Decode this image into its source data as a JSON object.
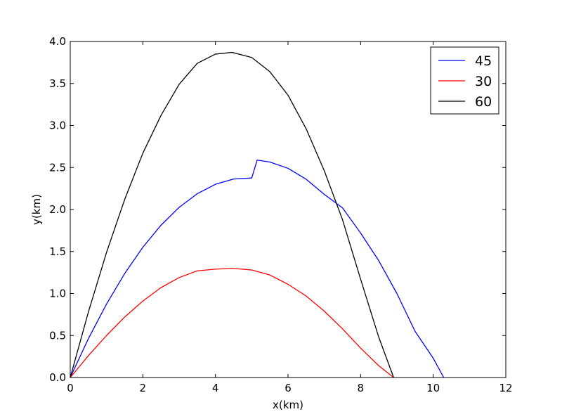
{
  "chart_data": {
    "type": "line",
    "title": "",
    "xlabel": "x(km)",
    "ylabel": "y(km)",
    "xlim": [
      0,
      12
    ],
    "ylim": [
      0,
      4.0
    ],
    "x_ticks": [
      "0",
      "2",
      "4",
      "6",
      "8",
      "10",
      "12"
    ],
    "y_ticks": [
      "0.0",
      "0.5",
      "1.0",
      "1.5",
      "2.0",
      "2.5",
      "3.0",
      "3.5",
      "4.0"
    ],
    "grid": false,
    "legend_position": "top-right",
    "series": [
      {
        "name": "45",
        "color": "#0000ff",
        "x": [
          0,
          0.5,
          1,
          1.5,
          2,
          2.5,
          3,
          3.5,
          4,
          4.5,
          5,
          5.15,
          5.5,
          6,
          6.5,
          7,
          7.5,
          8,
          8.5,
          9,
          9.5,
          10,
          10.29
        ],
        "y": [
          0,
          0.463,
          0.875,
          1.238,
          1.55,
          1.813,
          2.025,
          2.188,
          2.3,
          2.363,
          2.375,
          2.588,
          2.565,
          2.49,
          2.36,
          2.18,
          2.02,
          1.72,
          1.39,
          1.0,
          0.55,
          0.23,
          0
        ]
      },
      {
        "name": "30",
        "color": "#ff0000",
        "x": [
          0,
          0.5,
          1,
          1.5,
          2,
          2.5,
          3,
          3.5,
          4,
          4.46,
          5,
          5.5,
          6,
          6.5,
          7,
          7.5,
          8,
          8.5,
          8.91
        ],
        "y": [
          0,
          0.26,
          0.5,
          0.72,
          0.91,
          1.07,
          1.19,
          1.27,
          1.29,
          1.3,
          1.28,
          1.22,
          1.11,
          0.97,
          0.79,
          0.58,
          0.35,
          0.14,
          0
        ]
      },
      {
        "name": "60",
        "color": "#000000",
        "x": [
          0,
          0.5,
          1,
          1.5,
          2,
          2.5,
          3,
          3.5,
          4,
          4.46,
          5,
          5.5,
          6,
          6.5,
          7,
          7.5,
          8,
          8.5,
          8.91
        ],
        "y": [
          0,
          0.78,
          1.49,
          2.12,
          2.67,
          3.12,
          3.49,
          3.74,
          3.85,
          3.87,
          3.81,
          3.64,
          3.36,
          2.96,
          2.46,
          1.88,
          1.17,
          0.48,
          0
        ]
      }
    ]
  }
}
